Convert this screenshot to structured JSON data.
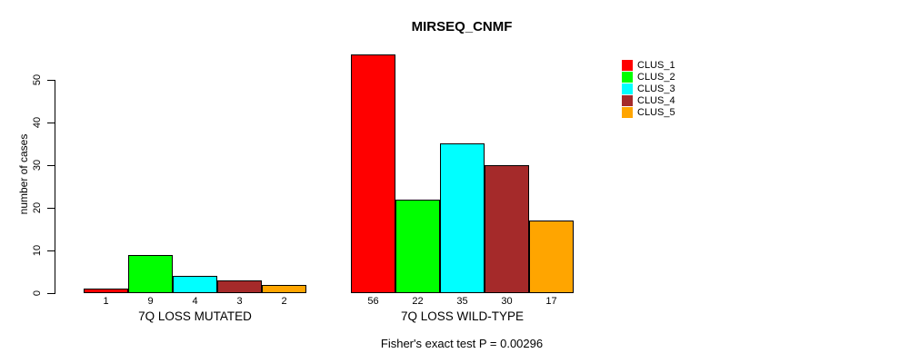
{
  "chart_data": {
    "type": "bar",
    "title": "MIRSEQ_CNMF",
    "ylabel": "number of cases",
    "xlabel": "",
    "ylim": [
      0,
      56
    ],
    "yticks": [
      0,
      10,
      20,
      30,
      40,
      50
    ],
    "grid": false,
    "legend_position": "top-right",
    "series": [
      {
        "name": "CLUS_1",
        "color": "#ff0000"
      },
      {
        "name": "CLUS_2",
        "color": "#00ff00"
      },
      {
        "name": "CLUS_3",
        "color": "#00ffff"
      },
      {
        "name": "CLUS_4",
        "color": "#a52a2a"
      },
      {
        "name": "CLUS_5",
        "color": "#ffa500"
      }
    ],
    "groups": [
      {
        "label": "7Q LOSS MUTATED",
        "values": [
          1,
          9,
          4,
          3,
          2
        ]
      },
      {
        "label": "7Q LOSS WILD-TYPE",
        "values": [
          56,
          22,
          35,
          30,
          17
        ]
      }
    ],
    "bar_value_labels_shown": true,
    "annotation": "Fisher's exact test P = 0.00296"
  }
}
